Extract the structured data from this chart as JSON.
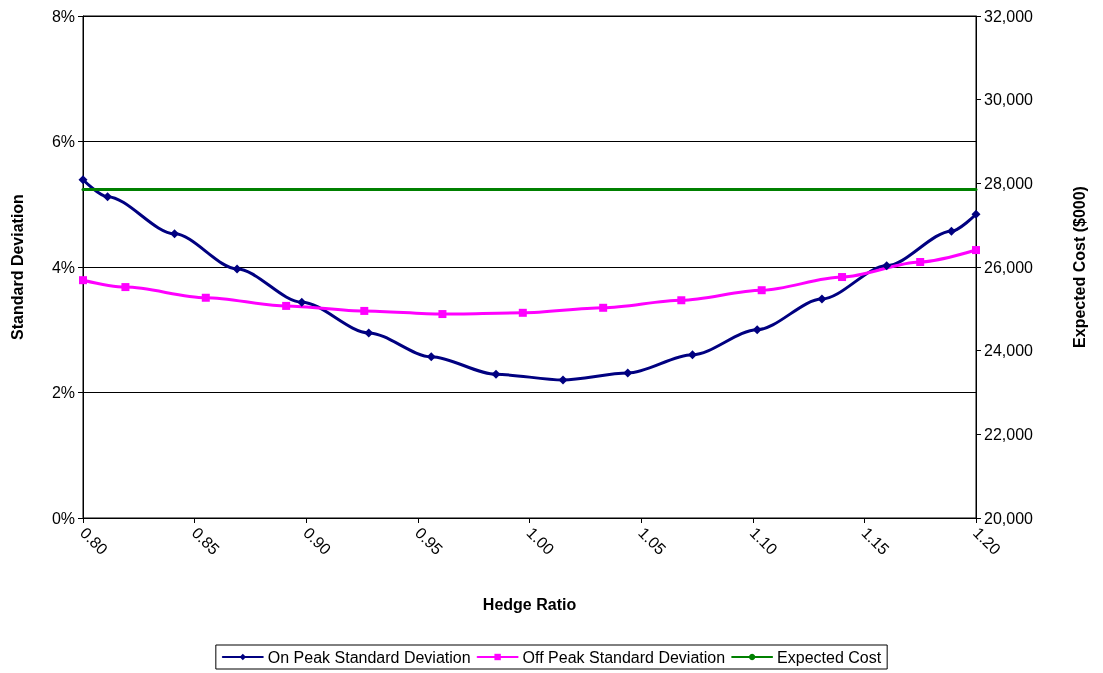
{
  "chart_data": {
    "type": "line",
    "xlabel": "Hedge Ratio",
    "ylabel": "Standard Deviation",
    "y2label": "Expected Cost ($000)",
    "xlim": [
      0.8,
      1.2
    ],
    "xticks": [
      {
        "value": 0.8,
        "label": "0.80"
      },
      {
        "value": 0.85,
        "label": "0.85"
      },
      {
        "value": 0.9,
        "label": "0.90"
      },
      {
        "value": 0.95,
        "label": "0.95"
      },
      {
        "value": 1.0,
        "label": "1.00"
      },
      {
        "value": 1.05,
        "label": "1.05"
      },
      {
        "value": 1.1,
        "label": "1.10"
      },
      {
        "value": 1.15,
        "label": "1.15"
      },
      {
        "value": 1.2,
        "label": "1.20"
      }
    ],
    "ylim": [
      0,
      8
    ],
    "yticks": [
      {
        "value": 0,
        "label": "0%"
      },
      {
        "value": 2,
        "label": "2%"
      },
      {
        "value": 4,
        "label": "4%"
      },
      {
        "value": 6,
        "label": "6%"
      },
      {
        "value": 8,
        "label": "8%"
      }
    ],
    "y2lim": [
      20000,
      32000
    ],
    "y2ticks": [
      {
        "value": 20000,
        "label": "20,000"
      },
      {
        "value": 22000,
        "label": "22,000"
      },
      {
        "value": 24000,
        "label": "24,000"
      },
      {
        "value": 26000,
        "label": "26,000"
      },
      {
        "value": 28000,
        "label": "28,000"
      },
      {
        "value": 30000,
        "label": "30,000"
      },
      {
        "value": 32000,
        "label": "32,000"
      }
    ],
    "grid": "y",
    "legend": "bottom",
    "series": [
      {
        "name": "On Peak Standard Deviation",
        "color": "#000080",
        "marker": "diamond",
        "x": [
          0.8,
          0.811,
          0.841,
          0.869,
          0.898,
          0.928,
          0.956,
          0.985,
          1.015,
          1.044,
          1.073,
          1.102,
          1.131,
          1.16,
          1.189,
          1.2
        ],
        "values": [
          5.39,
          5.12,
          4.53,
          3.97,
          3.44,
          2.95,
          2.57,
          2.29,
          2.2,
          2.31,
          2.6,
          3.0,
          3.49,
          4.02,
          4.57,
          4.84
        ]
      },
      {
        "name": "Off Peak Standard Deviation",
        "color": "#ff00ff",
        "marker": "square",
        "x": [
          0.8,
          0.819,
          0.855,
          0.891,
          0.926,
          0.961,
          0.997,
          1.033,
          1.068,
          1.104,
          1.14,
          1.175,
          1.2
        ],
        "values": [
          3.79,
          3.68,
          3.51,
          3.38,
          3.3,
          3.25,
          3.27,
          3.35,
          3.47,
          3.63,
          3.84,
          4.08,
          4.27
        ]
      },
      {
        "name": "Expected Cost",
        "color": "#008000",
        "marker": "none",
        "axis": "y2",
        "x": [
          0.8,
          1.2
        ],
        "values": [
          27850,
          27850
        ]
      }
    ]
  }
}
